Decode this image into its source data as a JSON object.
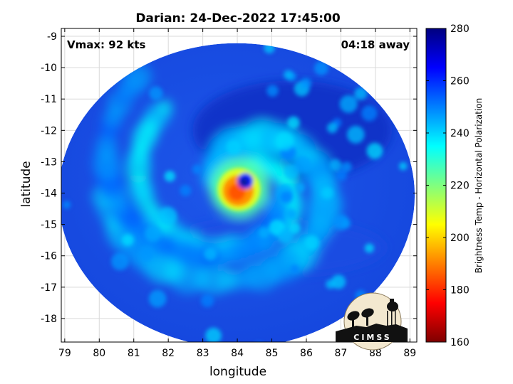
{
  "chart_data": {
    "type": "heatmap",
    "title": "Darian: 24-Dec-2022 17:45:00",
    "annotations": {
      "vmax": "Vmax: 92 kts",
      "time_away": "04:18 away"
    },
    "xlabel": "longitude",
    "ylabel": "latitude",
    "xlim": [
      78.9,
      89.2
    ],
    "ylim": [
      -18.75,
      -8.75
    ],
    "x_ticks": [
      79,
      80,
      81,
      82,
      83,
      84,
      85,
      86,
      87,
      88,
      89
    ],
    "y_ticks": [
      -9,
      -10,
      -11,
      -12,
      -13,
      -14,
      -15,
      -16,
      -17,
      -18
    ],
    "grid": true,
    "colorbar": {
      "label": "Brightness Temp - Horizontal Polarization",
      "range": [
        160,
        280
      ],
      "ticks": [
        280,
        260,
        240,
        220,
        200,
        180,
        160
      ],
      "colormap": "jet"
    },
    "swath_center": {
      "lon": 84.0,
      "lat": -13.8
    },
    "eye": {
      "lon": 84.15,
      "lat": -13.7
    },
    "background_temp_k": 262,
    "cold_core_temp_k": 185,
    "logo": "CIMSS"
  }
}
